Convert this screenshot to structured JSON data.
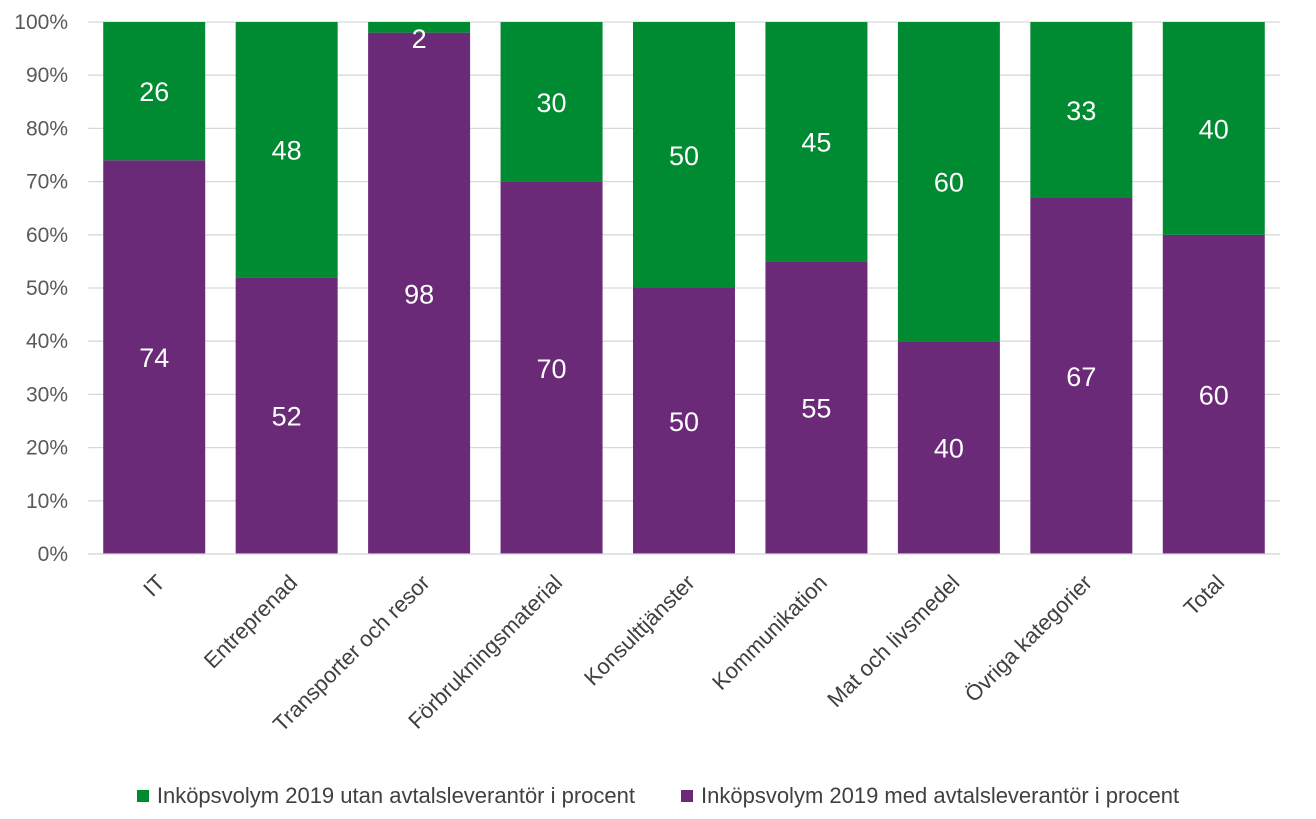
{
  "chart_data": {
    "type": "bar",
    "stacked": true,
    "categories": [
      "IT",
      "Entreprenad",
      "Transporter och resor",
      "Förbrukningsmaterial",
      "Konsulttjänster",
      "Kommunikation",
      "Mat och livsmedel",
      "Övriga kategorier",
      "Total"
    ],
    "series": [
      {
        "name": "Inköpsvolym 2019 med avtalsleverantör i procent",
        "color": "#6b2a78",
        "values": [
          74,
          52,
          98,
          70,
          50,
          55,
          40,
          67,
          60
        ]
      },
      {
        "name": "Inköpsvolym 2019 utan avtalsleverantör i procent",
        "color": "#008a32",
        "values": [
          26,
          48,
          2,
          30,
          50,
          45,
          60,
          33,
          40
        ]
      }
    ],
    "y_ticks": [
      "0%",
      "10%",
      "20%",
      "30%",
      "40%",
      "50%",
      "60%",
      "70%",
      "80%",
      "90%",
      "100%"
    ],
    "ylim": [
      0,
      100
    ],
    "grid": true,
    "legend_position": "bottom"
  },
  "legend": {
    "items": [
      {
        "label": "Inköpsvolym 2019 utan avtalsleverantör i procent",
        "color": "#008a32"
      },
      {
        "label": "Inköpsvolym 2019 med avtalsleverantör i procent",
        "color": "#6b2a78"
      }
    ]
  }
}
